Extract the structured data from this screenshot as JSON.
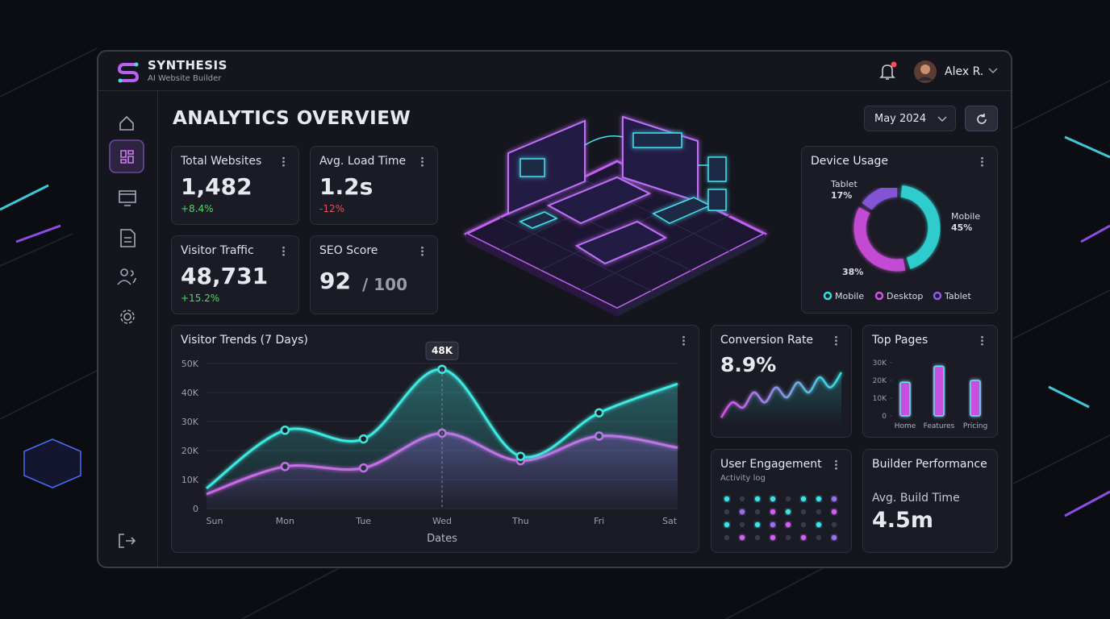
{
  "brand": {
    "name": "SYNTHESIS",
    "tagline": "AI Website Builder"
  },
  "user": {
    "name": "Alex R."
  },
  "page_title": "ANALYTICS OVERVIEW",
  "date_filter": "May 2024",
  "stats": [
    {
      "label": "Total Websites",
      "value": "1,482",
      "change": "+8.4%",
      "change_color": "#52d46a"
    },
    {
      "label": "Avg. Load Time",
      "value": "1.2s",
      "change": "-12%",
      "change_color": "#e0525a"
    },
    {
      "label": "Visitor Traffic",
      "value": "48,731",
      "change": "+15.2%",
      "change_color": "#52d46a"
    },
    {
      "label": "SEO Score",
      "value": "92",
      "suffix": "/ 100"
    }
  ],
  "device_usage": {
    "type": "pie",
    "title": "Device Usage",
    "categories": [
      "Mobile",
      "Desktop",
      "Tablet"
    ],
    "values": [
      45,
      38,
      17
    ],
    "value_labels": [
      "45%",
      "38%",
      "17%"
    ],
    "colors": [
      "#33e0e0",
      "#d651e8",
      "#8e5be8"
    ]
  },
  "visitor_trends": {
    "type": "line",
    "title": "Visitor Trends (7 Days)",
    "categories": [
      "Sun",
      "Mon",
      "Tue",
      "Wed",
      "Thu",
      "Fri",
      "Sat"
    ],
    "x_label": "Dates",
    "ylim": [
      0,
      50000
    ],
    "yticks": [
      {
        "value": 0,
        "label": "0"
      },
      {
        "value": 10000,
        "label": "10K"
      },
      {
        "value": 20000,
        "label": "20K"
      },
      {
        "value": 30000,
        "label": "30K"
      },
      {
        "value": 40000,
        "label": "40K"
      },
      {
        "value": 50000,
        "label": "50K"
      }
    ],
    "grid": true,
    "series": [
      {
        "color": "#3ee8e0",
        "values": [
          7000,
          27000,
          24000,
          48000,
          18000,
          33000,
          43000
        ],
        "value_labels": [
          null,
          null,
          null,
          "48K",
          null,
          null,
          null
        ]
      },
      {
        "color": "#d85ce8",
        "values": [
          5000,
          14500,
          14000,
          26000,
          16500,
          25000,
          21000
        ]
      }
    ]
  },
  "conversion_rate": {
    "type": "line",
    "title": "Conversion Rate",
    "headline": "8.9%",
    "values": [
      2,
      5,
      4,
      7,
      5,
      8,
      6,
      9,
      7,
      10,
      8,
      11
    ]
  },
  "top_pages": {
    "type": "bar",
    "title": "Top Pages",
    "categories": [
      "Home",
      "Features",
      "Pricing"
    ],
    "values": [
      19000,
      28000,
      20000
    ],
    "ylim": [
      0,
      30000
    ],
    "yticks": [
      {
        "value": 0,
        "label": "0"
      },
      {
        "value": 10000,
        "label": "10K"
      },
      {
        "value": 20000,
        "label": "20K"
      },
      {
        "value": 30000,
        "label": "30K"
      }
    ],
    "color": "#c94fe0"
  },
  "user_engagement": {
    "title": "User Engagement",
    "subtitle": "Activity log"
  },
  "builder_performance": {
    "title": "Builder Performance",
    "metric": "Avg. Build Time",
    "value": "4.5m"
  }
}
